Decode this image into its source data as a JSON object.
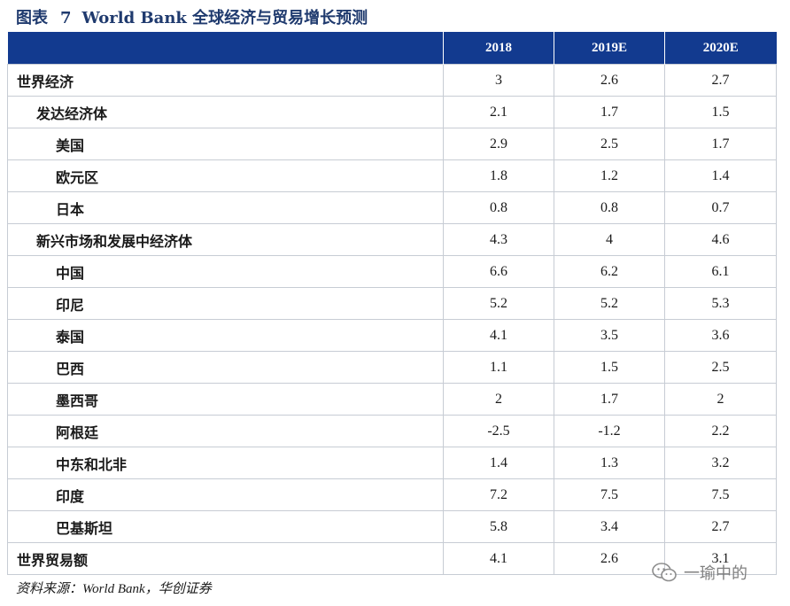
{
  "title": {
    "prefix": "图表",
    "number": "7",
    "text": "World Bank 全球经济与贸易增长预测"
  },
  "table": {
    "headers": [
      "",
      "2018",
      "2019E",
      "2020E"
    ],
    "rows": [
      {
        "label": "世界经济",
        "level": 0,
        "values": [
          "3",
          "2.6",
          "2.7"
        ]
      },
      {
        "label": "发达经济体",
        "level": 1,
        "values": [
          "2.1",
          "1.7",
          "1.5"
        ]
      },
      {
        "label": "美国",
        "level": 2,
        "values": [
          "2.9",
          "2.5",
          "1.7"
        ]
      },
      {
        "label": "欧元区",
        "level": 2,
        "values": [
          "1.8",
          "1.2",
          "1.4"
        ]
      },
      {
        "label": "日本",
        "level": 2,
        "values": [
          "0.8",
          "0.8",
          "0.7"
        ]
      },
      {
        "label": "新兴市场和发展中经济体",
        "level": 1,
        "values": [
          "4.3",
          "4",
          "4.6"
        ]
      },
      {
        "label": "中国",
        "level": 2,
        "values": [
          "6.6",
          "6.2",
          "6.1"
        ]
      },
      {
        "label": "印尼",
        "level": 2,
        "values": [
          "5.2",
          "5.2",
          "5.3"
        ]
      },
      {
        "label": "泰国",
        "level": 2,
        "values": [
          "4.1",
          "3.5",
          "3.6"
        ]
      },
      {
        "label": "巴西",
        "level": 2,
        "values": [
          "1.1",
          "1.5",
          "2.5"
        ]
      },
      {
        "label": "墨西哥",
        "level": 2,
        "values": [
          "2",
          "1.7",
          "2"
        ]
      },
      {
        "label": "阿根廷",
        "level": 2,
        "values": [
          "-2.5",
          "-1.2",
          "2.2"
        ]
      },
      {
        "label": "中东和北非",
        "level": 2,
        "values": [
          "1.4",
          "1.3",
          "3.2"
        ]
      },
      {
        "label": "印度",
        "level": 2,
        "values": [
          "7.2",
          "7.5",
          "7.5"
        ]
      },
      {
        "label": "巴基斯坦",
        "level": 2,
        "values": [
          "5.8",
          "3.4",
          "2.7"
        ]
      },
      {
        "label": "世界贸易额",
        "level": 0,
        "values": [
          "4.1",
          "2.6",
          "3.1"
        ]
      }
    ]
  },
  "source": "资料来源：World Bank，华创证券",
  "watermark": {
    "icon": "wechat-icon",
    "text": "一瑜中的"
  },
  "colors": {
    "header_bg": "#123a8f",
    "title": "#1f3a6e",
    "grid": "#c7ccd4"
  }
}
